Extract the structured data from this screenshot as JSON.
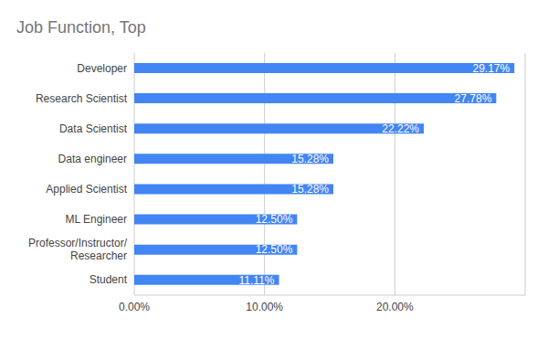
{
  "chart_data": {
    "type": "bar",
    "title": "Job Function, Top",
    "orientation": "horizontal",
    "categories": [
      "Developer",
      "Research Scientist",
      "Data Scientist",
      "Data engineer",
      "Applied Scientist",
      "ML Engineer",
      "Professor/Instructor/Researcher",
      "Student"
    ],
    "values": [
      29.17,
      27.78,
      22.22,
      15.28,
      15.28,
      12.5,
      12.5,
      11.11
    ],
    "value_labels": [
      "29.17%",
      "27.78%",
      "22.22%",
      "15.28%",
      "15.28%",
      "12.50%",
      "12.50%",
      "11.11%"
    ],
    "color": "#4285f4",
    "xlim": [
      0,
      30
    ],
    "xticks": [
      {
        "value": 0,
        "label": "0.00%"
      },
      {
        "value": 10,
        "label": "10.00%"
      },
      {
        "value": 20,
        "label": "20.00%"
      }
    ],
    "grid": true,
    "data_labels": true
  }
}
